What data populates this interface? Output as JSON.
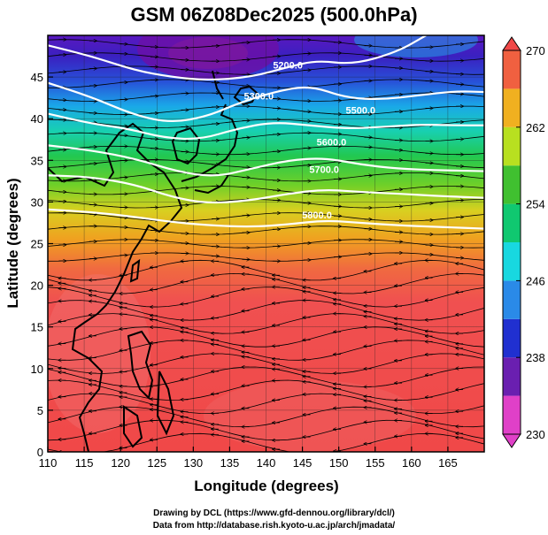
{
  "title": "GSM 06Z08Dec2025 (500.0hPa)",
  "xlabel": "Longitude (degrees)",
  "ylabel": "Latitude  (degrees)",
  "credits": {
    "line1": "Drawing by DCL (https://www.gfd-dennou.org/library/dcl/)",
    "line2": "Data from http://database.rish.kyoto-u.ac.jp/arch/jmadata/"
  },
  "chart_data": {
    "type": "heatmap",
    "field": "temperature (K) shaded, geopotential height contours, wind streamlines",
    "xlim": [
      110,
      170
    ],
    "ylim": [
      0,
      50
    ],
    "xticks": [
      "110",
      "115",
      "120",
      "125",
      "130",
      "135",
      "140",
      "145",
      "150",
      "155",
      "160",
      "165"
    ],
    "yticks": [
      "0",
      "5",
      "10",
      "15",
      "20",
      "25",
      "30",
      "35",
      "40",
      "45"
    ],
    "colorbar": {
      "min": 230,
      "max": 270,
      "tick_labels": [
        "230",
        "238",
        "246",
        "254",
        "262",
        "270"
      ],
      "stops": [
        {
          "value": 230,
          "color": "#e040c8"
        },
        {
          "value": 234,
          "color": "#6a1fb0"
        },
        {
          "value": 238,
          "color": "#2030d0"
        },
        {
          "value": 242,
          "color": "#2a8ae8"
        },
        {
          "value": 246,
          "color": "#18d8e0"
        },
        {
          "value": 250,
          "color": "#10c870"
        },
        {
          "value": 254,
          "color": "#40c030"
        },
        {
          "value": 258,
          "color": "#b8e020"
        },
        {
          "value": 262,
          "color": "#f0b020"
        },
        {
          "value": 266,
          "color": "#f06040"
        },
        {
          "value": 270,
          "color": "#f04848"
        }
      ]
    },
    "contours": [
      {
        "label": "5200.0",
        "points": [
          [
            110,
            48.8
          ],
          [
            116,
            47.5
          ],
          [
            122,
            45.8
          ],
          [
            127,
            45.0
          ],
          [
            132,
            44.6
          ],
          [
            138,
            45.0
          ],
          [
            143,
            46.2
          ],
          [
            147,
            47.0
          ],
          [
            152,
            46.5
          ],
          [
            158,
            48.0
          ],
          [
            162,
            50
          ]
        ]
      },
      {
        "label": "5300.0",
        "points": [
          [
            110,
            44.3
          ],
          [
            116,
            42.6
          ],
          [
            122,
            40.4
          ],
          [
            127,
            39.5
          ],
          [
            132,
            40.3
          ],
          [
            136,
            41.8
          ],
          [
            141,
            43.2
          ],
          [
            146,
            44.0
          ],
          [
            151,
            42.5
          ],
          [
            156,
            42.3
          ],
          [
            161,
            42.8
          ],
          [
            166,
            43.3
          ],
          [
            170,
            43.2
          ]
        ]
      },
      {
        "label": "5500.0",
        "points": [
          [
            110,
            40.6
          ],
          [
            116,
            39.4
          ],
          [
            121,
            38.8
          ],
          [
            126,
            37.7
          ],
          [
            131,
            37.5
          ],
          [
            136,
            38.8
          ],
          [
            141,
            39.6
          ],
          [
            146,
            39.2
          ],
          [
            151,
            38.8
          ],
          [
            156,
            39.0
          ],
          [
            161,
            39.3
          ],
          [
            166,
            39.2
          ],
          [
            170,
            39.2
          ]
        ]
      },
      {
        "label": "5600.0",
        "points": [
          [
            110,
            36.8
          ],
          [
            116,
            36.2
          ],
          [
            122,
            35.2
          ],
          [
            128,
            33.6
          ],
          [
            133,
            33.0
          ],
          [
            138,
            34.0
          ],
          [
            143,
            35.0
          ],
          [
            148,
            35.3
          ],
          [
            153,
            34.5
          ],
          [
            158,
            34.0
          ],
          [
            164,
            33.8
          ],
          [
            170,
            33.7
          ]
        ]
      },
      {
        "label": "5700.0",
        "points": [
          [
            110,
            33.2
          ],
          [
            116,
            33.0
          ],
          [
            122,
            32.1
          ],
          [
            127,
            30.6
          ],
          [
            132,
            29.8
          ],
          [
            138,
            30.2
          ],
          [
            143,
            31.0
          ],
          [
            148,
            31.5
          ],
          [
            153,
            31.2
          ],
          [
            158,
            31.0
          ],
          [
            164,
            30.7
          ],
          [
            170,
            30.5
          ]
        ]
      },
      {
        "label": "5800.0",
        "points": [
          [
            110,
            29.1
          ],
          [
            116,
            28.8
          ],
          [
            122,
            28.2
          ],
          [
            127,
            27.6
          ],
          [
            132,
            27.2
          ],
          [
            138,
            27.0
          ],
          [
            143,
            27.3
          ],
          [
            148,
            27.8
          ],
          [
            153,
            27.5
          ],
          [
            158,
            27.2
          ],
          [
            164,
            27.0
          ],
          [
            170,
            26.8
          ]
        ]
      }
    ],
    "contour_label_positions": [
      [
        143,
        46.0
      ],
      [
        139,
        42.3
      ],
      [
        153,
        40.6
      ],
      [
        149,
        36.8
      ],
      [
        148,
        33.5
      ],
      [
        147,
        28.0
      ]
    ]
  }
}
